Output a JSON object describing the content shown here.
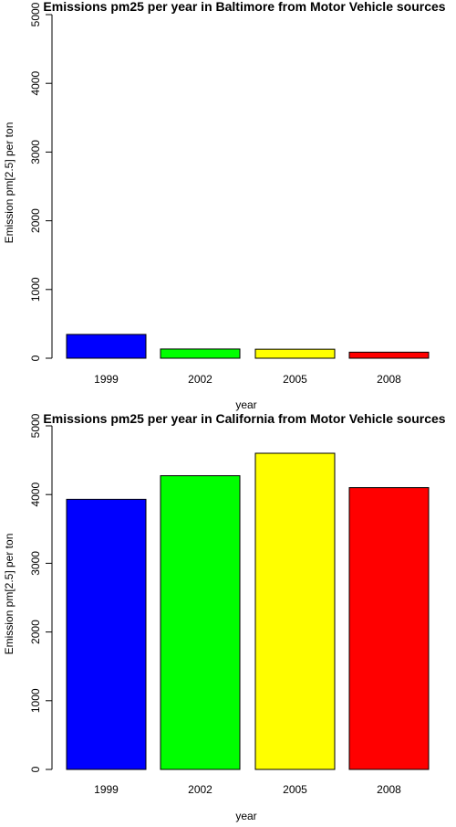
{
  "chart_data": [
    {
      "type": "bar",
      "title": "Emissions pm25 per year in Baltimore from Motor Vehicle sources",
      "xlabel": "year",
      "ylabel": "Emission pm[2.5] per ton",
      "categories": [
        "1999",
        "2002",
        "2005",
        "2008"
      ],
      "values": [
        346,
        134,
        131,
        88
      ],
      "colors": [
        "#0000ff",
        "#00ff00",
        "#ffff00",
        "#ff0000"
      ],
      "ylim": [
        0,
        5000
      ],
      "yticks": [
        0,
        1000,
        2000,
        3000,
        4000,
        5000
      ],
      "grid": false,
      "legend": "none"
    },
    {
      "type": "bar",
      "title": "Emissions pm25 per year in California from Motor Vehicle sources",
      "xlabel": "year",
      "ylabel": "Emission pm[2.5] per ton",
      "categories": [
        "1999",
        "2002",
        "2005",
        "2008"
      ],
      "values": [
        3931,
        4274,
        4601,
        4101
      ],
      "colors": [
        "#0000ff",
        "#00ff00",
        "#ffff00",
        "#ff0000"
      ],
      "ylim": [
        0,
        5000
      ],
      "yticks": [
        0,
        1000,
        2000,
        3000,
        4000,
        5000
      ],
      "grid": false,
      "legend": "none"
    }
  ]
}
